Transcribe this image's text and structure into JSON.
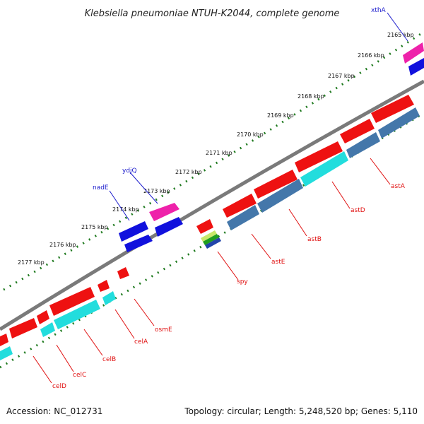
{
  "title": "Klebsiella pneumoniae NTUH-K2044, complete genome",
  "footer": {
    "accession": "Accession: NC_012731",
    "summary": "Topology: circular; Length: 5,248,520 bp; Genes: 5,110"
  },
  "kbp_labels": [
    "2165 kbp",
    "2166 kbp",
    "2167 kbp",
    "2168 kbp",
    "2169 kbp",
    "2170 kbp",
    "2171 kbp",
    "2172 kbp",
    "2173 kbp",
    "2174 kbp",
    "2175 kbp",
    "2176 kbp",
    "2177 kbp"
  ],
  "genes_outer": [
    {
      "name": "xthA",
      "color": "blue"
    },
    {
      "name": "ydjQ",
      "color": "blue"
    },
    {
      "name": "nadE",
      "color": "blue"
    }
  ],
  "genes_inner": [
    {
      "name": "astA",
      "color": "red"
    },
    {
      "name": "astD",
      "color": "red"
    },
    {
      "name": "astB",
      "color": "red"
    },
    {
      "name": "astE",
      "color": "red"
    },
    {
      "name": "spy",
      "color": "red"
    },
    {
      "name": "osmE",
      "color": "red"
    },
    {
      "name": "celA",
      "color": "red"
    },
    {
      "name": "celB",
      "color": "red"
    },
    {
      "name": "celC",
      "color": "red"
    },
    {
      "name": "celD",
      "color": "red"
    }
  ],
  "colors": {
    "backbone": "#7a7a7a",
    "ticks": "#1f7a1f",
    "gene_red": "#ee1111",
    "gene_blue": "#1111dd",
    "gene_magenta": "#ee22aa",
    "gene_cyan": "#22dddd",
    "gene_steel": "#4477aa",
    "label_red": "#e01010",
    "label_blue": "#1a1acc"
  }
}
